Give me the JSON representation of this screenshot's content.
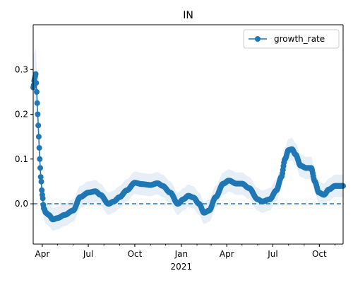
{
  "chart_data": {
    "type": "line",
    "title": "IN",
    "legend": {
      "entries": [
        "growth_rate"
      ],
      "placement": "top-right"
    },
    "colors": {
      "series": "#1f77b4",
      "band": "#dbe7f4",
      "zero_line": "#1f77b4"
    },
    "xlabel": "",
    "ylabel": "",
    "x_axis": {
      "type": "date",
      "range": [
        "2020-03-14",
        "2021-11-17"
      ],
      "major_ticks": [
        {
          "date": "2020-04-01",
          "label": "Apr"
        },
        {
          "date": "2020-07-01",
          "label": "Jul"
        },
        {
          "date": "2020-10-01",
          "label": "Oct"
        },
        {
          "date": "2021-01-01",
          "label": "Jan"
        },
        {
          "date": "2021-04-01",
          "label": "Apr"
        },
        {
          "date": "2021-07-01",
          "label": "Jul"
        },
        {
          "date": "2021-10-01",
          "label": "Oct"
        }
      ],
      "year_label": {
        "date": "2021-01-01",
        "label": "2021"
      }
    },
    "y_axis": {
      "range": [
        -0.09,
        0.4
      ],
      "ticks": [
        {
          "value": 0.0,
          "label": "0.0"
        },
        {
          "value": 0.1,
          "label": "0.1"
        },
        {
          "value": 0.2,
          "label": "0.2"
        },
        {
          "value": 0.3,
          "label": "0.3"
        }
      ]
    },
    "reference_line": {
      "y": 0.0,
      "style": "dashed"
    },
    "series": [
      {
        "name": "growth_rate",
        "marker": "circle",
        "key_points": [
          [
            "2020-03-14",
            0.26
          ],
          [
            "2020-03-17",
            0.28
          ],
          [
            "2020-03-19",
            0.29
          ],
          [
            "2020-03-21",
            0.25
          ],
          [
            "2020-03-23",
            0.2
          ],
          [
            "2020-03-25",
            0.15
          ],
          [
            "2020-03-27",
            0.1
          ],
          [
            "2020-03-29",
            0.06
          ],
          [
            "2020-04-01",
            0.02
          ],
          [
            "2020-04-04",
            -0.01
          ],
          [
            "2020-04-08",
            -0.02
          ],
          [
            "2020-04-14",
            -0.025
          ],
          [
            "2020-04-22",
            -0.035
          ],
          [
            "2020-05-01",
            -0.032
          ],
          [
            "2020-05-15",
            -0.025
          ],
          [
            "2020-06-01",
            -0.015
          ],
          [
            "2020-06-15",
            0.015
          ],
          [
            "2020-07-01",
            0.025
          ],
          [
            "2020-07-15",
            0.028
          ],
          [
            "2020-07-25",
            0.02
          ],
          [
            "2020-08-10",
            0.0
          ],
          [
            "2020-08-20",
            0.005
          ],
          [
            "2020-09-01",
            0.015
          ],
          [
            "2020-09-15",
            0.03
          ],
          [
            "2020-10-01",
            0.047
          ],
          [
            "2020-10-15",
            0.044
          ],
          [
            "2020-11-01",
            0.042
          ],
          [
            "2020-11-15",
            0.046
          ],
          [
            "2020-11-25",
            0.04
          ],
          [
            "2020-12-10",
            0.025
          ],
          [
            "2020-12-25",
            0.0
          ],
          [
            "2021-01-05",
            0.01
          ],
          [
            "2021-01-15",
            0.018
          ],
          [
            "2021-01-25",
            0.014
          ],
          [
            "2021-02-05",
            0.0
          ],
          [
            "2021-02-15",
            -0.02
          ],
          [
            "2021-02-25",
            -0.015
          ],
          [
            "2021-03-10",
            0.015
          ],
          [
            "2021-03-25",
            0.045
          ],
          [
            "2021-04-05",
            0.052
          ],
          [
            "2021-04-20",
            0.045
          ],
          [
            "2021-05-01",
            0.045
          ],
          [
            "2021-05-15",
            0.035
          ],
          [
            "2021-06-01",
            0.01
          ],
          [
            "2021-06-10",
            0.005
          ],
          [
            "2021-06-25",
            0.01
          ],
          [
            "2021-07-08",
            0.03
          ],
          [
            "2021-07-18",
            0.06
          ],
          [
            "2021-07-25",
            0.1
          ],
          [
            "2021-08-01",
            0.12
          ],
          [
            "2021-08-08",
            0.122
          ],
          [
            "2021-08-15",
            0.11
          ],
          [
            "2021-08-25",
            0.085
          ],
          [
            "2021-09-05",
            0.08
          ],
          [
            "2021-09-15",
            0.08
          ],
          [
            "2021-09-22",
            0.05
          ],
          [
            "2021-09-30",
            0.025
          ],
          [
            "2021-10-10",
            0.02
          ],
          [
            "2021-10-20",
            0.032
          ],
          [
            "2021-11-01",
            0.04
          ],
          [
            "2021-11-17",
            0.04
          ]
        ]
      }
    ]
  }
}
